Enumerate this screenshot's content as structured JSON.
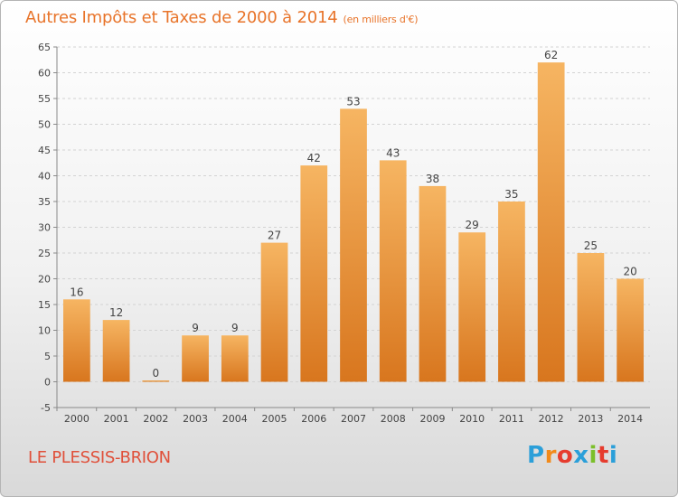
{
  "chart_title": "Autres Impôts et Taxes de 2000 à 2014",
  "chart_subtitle": "(en milliers d'€)",
  "commune_name": "LE PLESSIS-BRION",
  "logo": {
    "text": "Proxiti",
    "colors": [
      "#2b9fd9",
      "#f28a1a",
      "#e63c2e",
      "#2b9fd9",
      "#7bbf2a",
      "#e63c2e",
      "#2b9fd9"
    ]
  },
  "colors": {
    "bar_light": "#f6b562",
    "bar_dark": "#d8761e",
    "title": "#e8742a",
    "commune": "#e0503a"
  },
  "chart_data": {
    "type": "bar",
    "categories": [
      "2000",
      "2001",
      "2002",
      "2003",
      "2004",
      "2005",
      "2006",
      "2007",
      "2008",
      "2009",
      "2010",
      "2011",
      "2012",
      "2013",
      "2014"
    ],
    "values": [
      16,
      12,
      0,
      9,
      9,
      27,
      42,
      53,
      43,
      38,
      29,
      35,
      62,
      25,
      20
    ],
    "ylim": [
      -5,
      65
    ],
    "yticks": [
      -5,
      0,
      5,
      10,
      15,
      20,
      25,
      30,
      35,
      40,
      45,
      50,
      55,
      60,
      65
    ],
    "grid": true,
    "legend": "none"
  }
}
